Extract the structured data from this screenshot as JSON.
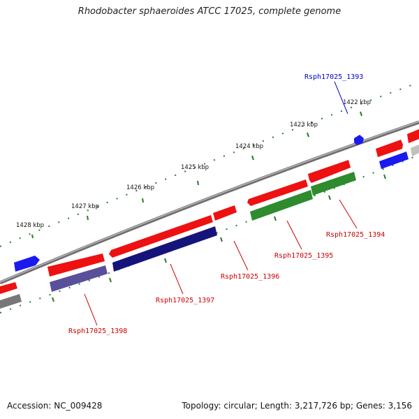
{
  "title": "Rhodobacter sphaeroides ATCC 17025, complete genome",
  "footer": {
    "accession": "Accession: NC_009428",
    "summary": "Topology: circular; Length: 3,217,726 bp; Genes: 3,156"
  },
  "scale_labels": [
    "1422 kbp",
    "1423 kbp",
    "1424 kbp",
    "1425 kbp",
    "1426 kbp",
    "1427 kbp",
    "1428 kbp"
  ],
  "gene_labels": [
    {
      "text": "Rsph17025_1393",
      "color": "#0000cc"
    },
    {
      "text": "Rsph17025_1394",
      "color": "#cc0000"
    },
    {
      "text": "Rsph17025_1395",
      "color": "#cc0000"
    },
    {
      "text": "Rsph17025_1396",
      "color": "#cc0000"
    },
    {
      "text": "Rsph17025_1397",
      "color": "#cc0000"
    },
    {
      "text": "Rsph17025_1398",
      "color": "#cc0000"
    }
  ],
  "colors": {
    "backbone": "#8c8c8c",
    "forward_cds": "#ee1111",
    "reverse_cds": "#1a1aee",
    "green_feature": "#2e8b2e",
    "navy_feature": "#14147a",
    "purple_feature": "#5a4f9a",
    "gray_feature": "#777777",
    "tick": "#2a7a2a"
  }
}
